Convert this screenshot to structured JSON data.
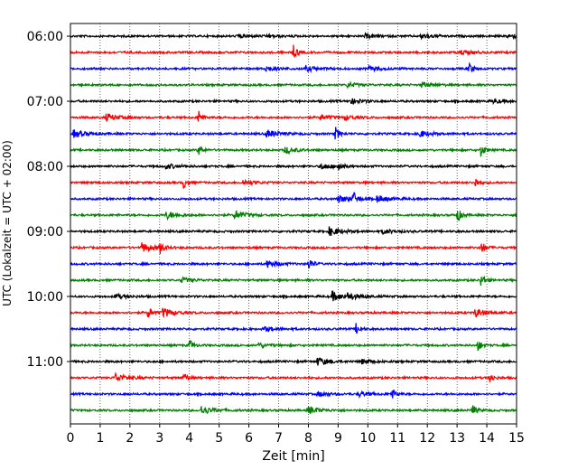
{
  "chart_data": {
    "type": "line",
    "title": "",
    "xlabel": "Zeit  [min]",
    "ylabel": "UTC (Lokalzeit = UTC + 02:00)",
    "xlim": [
      0,
      15
    ],
    "x_ticks": [
      "0",
      "1",
      "2",
      "3",
      "4",
      "5",
      "6",
      "7",
      "8",
      "9",
      "10",
      "11",
      "12",
      "13",
      "14",
      "15"
    ],
    "y_tick_labels": [
      "06:00",
      "07:00",
      "08:00",
      "09:00",
      "10:00",
      "11:00"
    ],
    "y_tick_rows": [
      0,
      4,
      8,
      12,
      16,
      20
    ],
    "grid": "vertical-dotted",
    "trace_colors": [
      "#000000",
      "#ff0000",
      "#0000ff",
      "#008000"
    ],
    "rows": [
      {
        "start": "06:00",
        "color": "black",
        "events": [
          [
            5.6,
            0.2
          ],
          [
            6.6,
            0.2
          ],
          [
            9.9,
            0.25
          ],
          [
            11.8,
            0.3
          ],
          [
            14.7,
            0.3
          ]
        ]
      },
      {
        "start": "06:15",
        "color": "red",
        "events": [
          [
            7.5,
            0.95
          ],
          [
            13.1,
            0.3
          ]
        ]
      },
      {
        "start": "06:30",
        "color": "blue",
        "events": [
          [
            6.5,
            0.4
          ],
          [
            7.9,
            0.35
          ],
          [
            10.0,
            0.3
          ],
          [
            13.4,
            0.75
          ]
        ]
      },
      {
        "start": "06:45",
        "color": "green",
        "events": [
          [
            9.3,
            0.3
          ],
          [
            11.8,
            0.3
          ]
        ]
      },
      {
        "start": "07:00",
        "color": "black",
        "events": [
          [
            9.4,
            0.35
          ],
          [
            14.2,
            0.25
          ]
        ]
      },
      {
        "start": "07:15",
        "color": "red",
        "events": [
          [
            1.2,
            0.5
          ],
          [
            4.3,
            0.95
          ],
          [
            8.4,
            0.3
          ],
          [
            9.2,
            0.3
          ]
        ]
      },
      {
        "start": "07:30",
        "color": "blue",
        "events": [
          [
            0.1,
            0.5
          ],
          [
            6.6,
            0.5
          ],
          [
            8.9,
            0.9
          ],
          [
            11.7,
            0.45
          ]
        ]
      },
      {
        "start": "07:45",
        "color": "green",
        "events": [
          [
            4.3,
            0.7
          ],
          [
            7.2,
            0.45
          ],
          [
            13.8,
            0.85
          ]
        ]
      },
      {
        "start": "08:00",
        "color": "black",
        "events": [
          [
            3.2,
            0.3
          ],
          [
            8.4,
            0.4
          ],
          [
            9.0,
            0.7
          ]
        ]
      },
      {
        "start": "08:15",
        "color": "red",
        "events": [
          [
            3.8,
            0.75
          ],
          [
            5.8,
            0.35
          ],
          [
            13.6,
            0.75
          ]
        ]
      },
      {
        "start": "08:30",
        "color": "blue",
        "events": [
          [
            9.0,
            0.45
          ],
          [
            9.5,
            0.95
          ],
          [
            10.3,
            0.45
          ]
        ]
      },
      {
        "start": "08:45",
        "color": "green",
        "events": [
          [
            3.2,
            0.5
          ],
          [
            5.5,
            0.55
          ],
          [
            13.0,
            0.95
          ]
        ]
      },
      {
        "start": "09:00",
        "color": "black",
        "events": [
          [
            8.7,
            0.55
          ],
          [
            10.5,
            0.3
          ]
        ]
      },
      {
        "start": "09:15",
        "color": "red",
        "events": [
          [
            2.4,
            0.6
          ],
          [
            3.0,
            0.75
          ],
          [
            13.8,
            0.95
          ]
        ]
      },
      {
        "start": "09:30",
        "color": "blue",
        "events": [
          [
            6.6,
            0.45
          ],
          [
            8.0,
            0.9
          ]
        ]
      },
      {
        "start": "09:45",
        "color": "green",
        "events": [
          [
            3.7,
            0.35
          ],
          [
            13.8,
            0.8
          ]
        ]
      },
      {
        "start": "10:00",
        "color": "black",
        "events": [
          [
            1.5,
            0.3
          ],
          [
            8.8,
            0.6
          ],
          [
            9.3,
            0.35
          ]
        ]
      },
      {
        "start": "10:15",
        "color": "red",
        "events": [
          [
            2.6,
            0.85
          ],
          [
            3.1,
            0.6
          ],
          [
            13.6,
            0.55
          ]
        ]
      },
      {
        "start": "10:30",
        "color": "blue",
        "events": [
          [
            6.5,
            0.3
          ],
          [
            9.6,
            0.7
          ]
        ]
      },
      {
        "start": "10:45",
        "color": "green",
        "events": [
          [
            4.0,
            0.75
          ],
          [
            6.3,
            0.3
          ],
          [
            13.7,
            0.75
          ]
        ]
      },
      {
        "start": "11:00",
        "color": "black",
        "events": [
          [
            8.3,
            0.5
          ],
          [
            9.8,
            0.3
          ]
        ]
      },
      {
        "start": "11:15",
        "color": "red",
        "events": [
          [
            1.5,
            0.55
          ],
          [
            3.8,
            0.75
          ],
          [
            14.1,
            0.7
          ]
        ]
      },
      {
        "start": "11:30",
        "color": "blue",
        "events": [
          [
            8.3,
            0.3
          ],
          [
            9.7,
            0.3
          ],
          [
            10.8,
            0.8
          ]
        ]
      },
      {
        "start": "11:45",
        "color": "green",
        "events": [
          [
            4.4,
            0.55
          ],
          [
            8.0,
            0.45
          ],
          [
            13.5,
            0.8
          ]
        ]
      }
    ]
  }
}
